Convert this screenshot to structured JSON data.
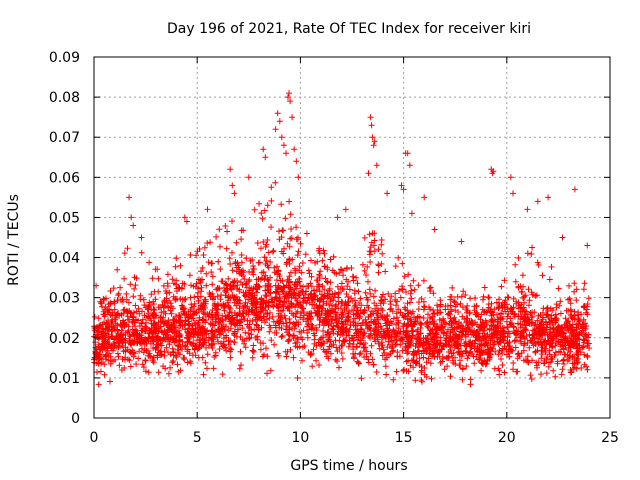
{
  "chart_data": {
    "type": "scatter",
    "title": "Day 196 of 2021, Rate Of TEC Index for receiver kiri",
    "xlabel": "GPS time / hours",
    "ylabel": "ROTI / TECUs",
    "xlim": [
      0,
      25
    ],
    "ylim": [
      0,
      0.09
    ],
    "xticks": [
      0,
      5,
      10,
      15,
      20,
      25
    ],
    "xtick_labels": [
      "0",
      "5",
      "10",
      "15",
      "20",
      "25"
    ],
    "yticks": [
      0,
      0.01,
      0.02,
      0.03,
      0.04,
      0.05,
      0.06,
      0.07,
      0.08,
      0.09
    ],
    "ytick_labels": [
      "0",
      "0.01",
      "0.02",
      "0.03",
      "0.04",
      "0.05",
      "0.06",
      "0.07",
      "0.08",
      "0.09"
    ],
    "grid": true,
    "marker": "+",
    "color": "#ff0000",
    "envelope": {
      "x": [
        0,
        0.5,
        1,
        1.5,
        2,
        2.5,
        3,
        3.5,
        4,
        4.5,
        5,
        5.5,
        6,
        6.5,
        7,
        7.5,
        8,
        8.5,
        9,
        9.5,
        10,
        10.5,
        11,
        11.5,
        12,
        12.5,
        13,
        13.5,
        14,
        14.5,
        15,
        15.5,
        16,
        16.5,
        17,
        17.5,
        18,
        18.5,
        19,
        19.5,
        20,
        20.5,
        21,
        21.5,
        22,
        22.5,
        23,
        23.5,
        24
      ],
      "low": [
        0.008,
        0.007,
        0.007,
        0.007,
        0.008,
        0.008,
        0.008,
        0.008,
        0.008,
        0.007,
        0.008,
        0.008,
        0.009,
        0.009,
        0.008,
        0.008,
        0.008,
        0.008,
        0.008,
        0.008,
        0.008,
        0.008,
        0.009,
        0.009,
        0.008,
        0.008,
        0.008,
        0.008,
        0.008,
        0.007,
        0.005,
        0.006,
        0.007,
        0.007,
        0.007,
        0.006,
        0.007,
        0.007,
        0.007,
        0.007,
        0.007,
        0.007,
        0.007,
        0.008,
        0.008,
        0.007,
        0.007,
        0.007,
        0.008
      ],
      "mid": [
        0.016,
        0.017,
        0.019,
        0.019,
        0.019,
        0.019,
        0.019,
        0.02,
        0.02,
        0.02,
        0.021,
        0.021,
        0.022,
        0.023,
        0.024,
        0.025,
        0.026,
        0.027,
        0.028,
        0.027,
        0.026,
        0.025,
        0.024,
        0.023,
        0.022,
        0.021,
        0.02,
        0.02,
        0.02,
        0.019,
        0.018,
        0.018,
        0.018,
        0.018,
        0.018,
        0.018,
        0.018,
        0.018,
        0.018,
        0.019,
        0.02,
        0.021,
        0.021,
        0.019,
        0.018,
        0.018,
        0.018,
        0.018,
        0.018
      ],
      "high": [
        0.028,
        0.03,
        0.036,
        0.042,
        0.044,
        0.04,
        0.038,
        0.037,
        0.04,
        0.045,
        0.043,
        0.046,
        0.047,
        0.05,
        0.052,
        0.05,
        0.055,
        0.058,
        0.06,
        0.058,
        0.05,
        0.047,
        0.045,
        0.044,
        0.042,
        0.04,
        0.044,
        0.05,
        0.045,
        0.04,
        0.042,
        0.038,
        0.035,
        0.033,
        0.035,
        0.032,
        0.032,
        0.031,
        0.03,
        0.032,
        0.036,
        0.04,
        0.042,
        0.045,
        0.04,
        0.036,
        0.034,
        0.034,
        0.034
      ]
    },
    "outliers": [
      {
        "x": 0.1,
        "y": 0.033
      },
      {
        "x": 1.7,
        "y": 0.055
      },
      {
        "x": 1.8,
        "y": 0.05
      },
      {
        "x": 1.9,
        "y": 0.048
      },
      {
        "x": 2.3,
        "y": 0.045
      },
      {
        "x": 4.4,
        "y": 0.05
      },
      {
        "x": 4.5,
        "y": 0.049
      },
      {
        "x": 5.5,
        "y": 0.052
      },
      {
        "x": 6.6,
        "y": 0.062
      },
      {
        "x": 6.7,
        "y": 0.058
      },
      {
        "x": 6.8,
        "y": 0.056
      },
      {
        "x": 7.5,
        "y": 0.06
      },
      {
        "x": 8.2,
        "y": 0.067
      },
      {
        "x": 8.3,
        "y": 0.065
      },
      {
        "x": 8.8,
        "y": 0.072
      },
      {
        "x": 8.9,
        "y": 0.076
      },
      {
        "x": 9.0,
        "y": 0.074
      },
      {
        "x": 9.1,
        "y": 0.07
      },
      {
        "x": 9.2,
        "y": 0.068
      },
      {
        "x": 9.4,
        "y": 0.08
      },
      {
        "x": 9.45,
        "y": 0.081
      },
      {
        "x": 9.5,
        "y": 0.079
      },
      {
        "x": 9.6,
        "y": 0.075
      },
      {
        "x": 9.7,
        "y": 0.067
      },
      {
        "x": 9.8,
        "y": 0.064
      },
      {
        "x": 9.3,
        "y": 0.066
      },
      {
        "x": 9.9,
        "y": 0.06
      },
      {
        "x": 11.8,
        "y": 0.05
      },
      {
        "x": 12.2,
        "y": 0.052
      },
      {
        "x": 13.4,
        "y": 0.075
      },
      {
        "x": 13.45,
        "y": 0.073
      },
      {
        "x": 13.5,
        "y": 0.07
      },
      {
        "x": 13.55,
        "y": 0.068
      },
      {
        "x": 13.6,
        "y": 0.069
      },
      {
        "x": 13.3,
        "y": 0.061
      },
      {
        "x": 13.7,
        "y": 0.063
      },
      {
        "x": 14.2,
        "y": 0.056
      },
      {
        "x": 14.9,
        "y": 0.058
      },
      {
        "x": 15.0,
        "y": 0.057
      },
      {
        "x": 15.1,
        "y": 0.066
      },
      {
        "x": 15.2,
        "y": 0.066
      },
      {
        "x": 15.3,
        "y": 0.063
      },
      {
        "x": 15.4,
        "y": 0.051
      },
      {
        "x": 16.0,
        "y": 0.055
      },
      {
        "x": 16.5,
        "y": 0.047
      },
      {
        "x": 17.8,
        "y": 0.044
      },
      {
        "x": 19.25,
        "y": 0.062
      },
      {
        "x": 19.3,
        "y": 0.061
      },
      {
        "x": 19.35,
        "y": 0.0615
      },
      {
        "x": 20.2,
        "y": 0.06
      },
      {
        "x": 20.3,
        "y": 0.056
      },
      {
        "x": 21.0,
        "y": 0.052
      },
      {
        "x": 21.5,
        "y": 0.054
      },
      {
        "x": 22.0,
        "y": 0.055
      },
      {
        "x": 22.7,
        "y": 0.045
      },
      {
        "x": 23.3,
        "y": 0.057
      },
      {
        "x": 23.9,
        "y": 0.043
      }
    ]
  }
}
